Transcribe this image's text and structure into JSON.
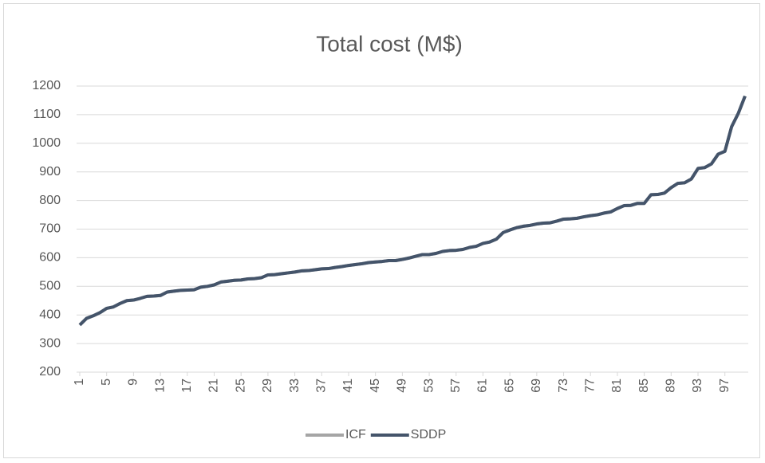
{
  "chart_data": {
    "type": "line",
    "title": "Total cost (M$)",
    "x": [
      1,
      2,
      3,
      4,
      5,
      6,
      7,
      8,
      9,
      10,
      11,
      12,
      13,
      14,
      15,
      16,
      17,
      18,
      19,
      20,
      21,
      22,
      23,
      24,
      25,
      26,
      27,
      28,
      29,
      30,
      31,
      32,
      33,
      34,
      35,
      36,
      37,
      38,
      39,
      40,
      41,
      42,
      43,
      44,
      45,
      46,
      47,
      48,
      49,
      50,
      51,
      52,
      53,
      54,
      55,
      56,
      57,
      58,
      59,
      60,
      61,
      62,
      63,
      64,
      65,
      66,
      67,
      68,
      69,
      70,
      71,
      72,
      73,
      74,
      75,
      76,
      77,
      78,
      79,
      80,
      81,
      82,
      83,
      84,
      85,
      86,
      87,
      88,
      89,
      90,
      91,
      92,
      93,
      94,
      95,
      96,
      97,
      98,
      99,
      100
    ],
    "xlim": [
      1,
      100
    ],
    "xticks": [
      1,
      5,
      9,
      13,
      17,
      21,
      25,
      29,
      33,
      37,
      41,
      45,
      49,
      53,
      57,
      61,
      65,
      69,
      73,
      77,
      81,
      85,
      89,
      93,
      97
    ],
    "ylim": [
      200,
      1200
    ],
    "yticks": [
      200,
      300,
      400,
      500,
      600,
      700,
      800,
      900,
      1000,
      1100,
      1200
    ],
    "grid": true,
    "legend": "bottom",
    "series": [
      {
        "name": "ICF",
        "color": "#a5a5a5",
        "values": [
          365,
          388,
          397,
          408,
          423,
          428,
          440,
          450,
          452,
          458,
          465,
          466,
          468,
          480,
          483,
          486,
          487,
          488,
          497,
          500,
          505,
          515,
          518,
          521,
          522,
          526,
          527,
          530,
          540,
          541,
          544,
          547,
          550,
          554,
          555,
          558,
          561,
          562,
          566,
          569,
          573,
          576,
          579,
          583,
          585,
          587,
          590,
          590,
          594,
          599,
          605,
          611,
          611,
          615,
          622,
          625,
          626,
          629,
          636,
          640,
          650,
          655,
          665,
          688,
          697,
          705,
          710,
          713,
          718,
          721,
          722,
          728,
          735,
          736,
          738,
          743,
          747,
          750,
          756,
          760,
          772,
          782,
          783,
          790,
          790,
          820,
          821,
          826,
          845,
          860,
          862,
          875,
          912,
          915,
          928,
          962,
          972,
          1058,
          1105,
          1165
        ]
      },
      {
        "name": "SDDP",
        "color": "#44546a",
        "values": [
          365,
          388,
          397,
          408,
          423,
          428,
          440,
          450,
          452,
          458,
          465,
          466,
          468,
          480,
          483,
          486,
          487,
          488,
          497,
          500,
          505,
          515,
          518,
          521,
          522,
          526,
          527,
          530,
          540,
          541,
          544,
          547,
          550,
          554,
          555,
          558,
          561,
          562,
          566,
          569,
          573,
          576,
          579,
          583,
          585,
          587,
          590,
          590,
          594,
          599,
          605,
          611,
          611,
          615,
          622,
          625,
          626,
          629,
          636,
          640,
          650,
          655,
          665,
          688,
          697,
          705,
          710,
          713,
          718,
          721,
          722,
          728,
          735,
          736,
          738,
          743,
          747,
          750,
          756,
          760,
          772,
          782,
          783,
          790,
          790,
          820,
          821,
          826,
          845,
          860,
          862,
          875,
          912,
          915,
          928,
          962,
          972,
          1058,
          1105,
          1165
        ]
      }
    ]
  }
}
